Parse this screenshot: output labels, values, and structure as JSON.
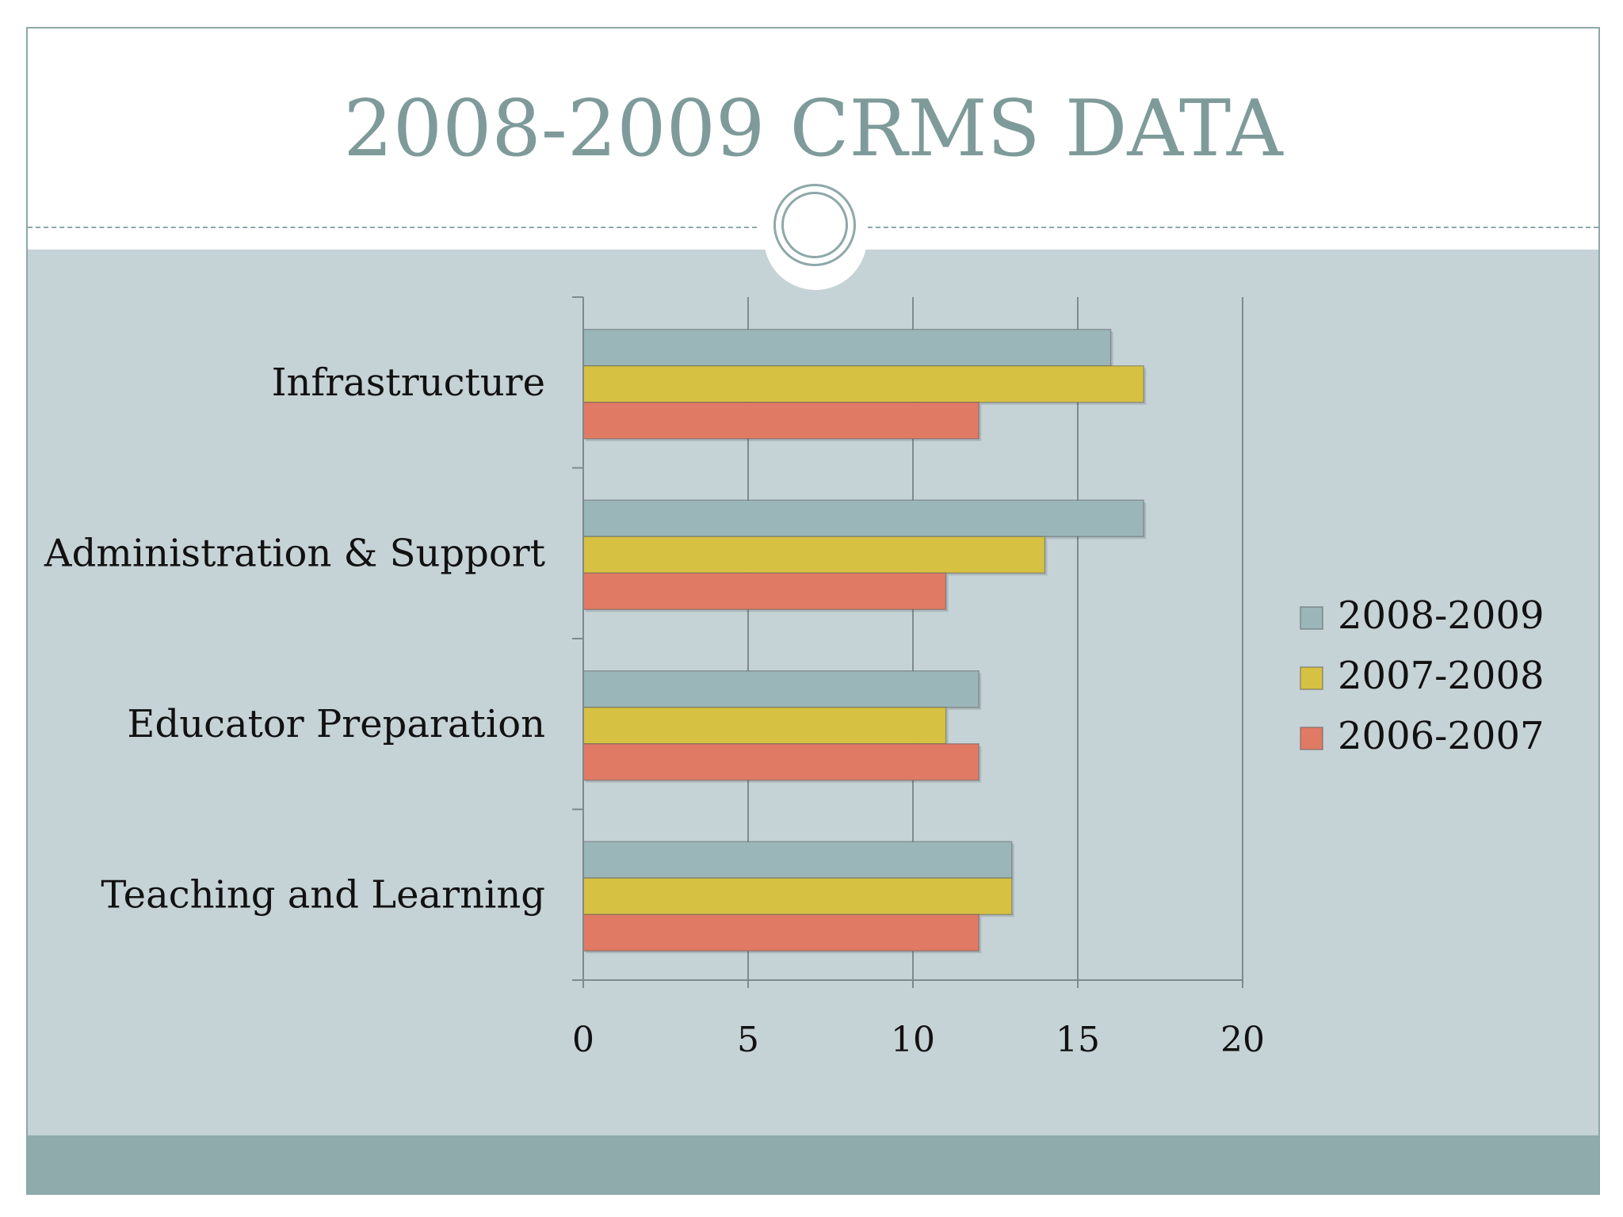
{
  "slide": {
    "title": "2008-2009 CRMS DATA"
  },
  "colors": {
    "title": "#7e9b9a",
    "panel": "#c5d2d6",
    "footer": "#8fabab",
    "series_2008_2009": "#9bb6b8",
    "series_2007_2008": "#d7c142",
    "series_2006_2007": "#e07a65"
  },
  "chart_data": {
    "type": "bar",
    "orientation": "horizontal",
    "categories": [
      "Infrastructure",
      "Administration & Support",
      "Educator Preparation",
      "Teaching and Learning"
    ],
    "series": [
      {
        "name": "2008-2009",
        "values": [
          16,
          17,
          12,
          13
        ],
        "color": "#9bb6b8"
      },
      {
        "name": "2007-2008",
        "values": [
          17,
          14,
          11,
          13
        ],
        "color": "#d7c142"
      },
      {
        "name": "2006-2007",
        "values": [
          12,
          11,
          12,
          12
        ],
        "color": "#e07a65"
      }
    ],
    "x_ticks": [
      "0",
      "5",
      "10",
      "15",
      "20"
    ],
    "xlim": [
      0,
      20
    ],
    "grid": true,
    "legend": "right"
  }
}
